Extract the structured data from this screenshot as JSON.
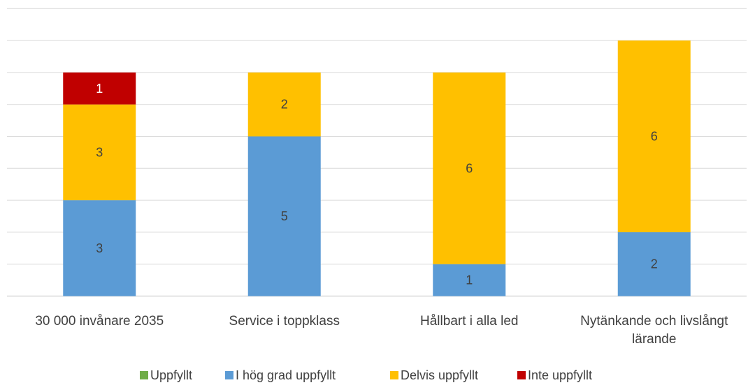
{
  "chart_data": {
    "type": "bar",
    "stacked": true,
    "title": "",
    "xlabel": "",
    "ylabel": "",
    "ylim": [
      0,
      9
    ],
    "grid": true,
    "legend_position": "bottom",
    "categories": [
      [
        "30 000 invånare 2035"
      ],
      [
        "Service i toppklass"
      ],
      [
        "Hållbart i alla led"
      ],
      [
        "Nytänkande och livslångt",
        "lärande"
      ]
    ],
    "series": [
      {
        "name": "Uppfyllt",
        "color": "#70ad47",
        "values": [
          0,
          0,
          0,
          0
        ]
      },
      {
        "name": "I hög grad uppfyllt",
        "color": "#5b9bd5",
        "values": [
          3,
          5,
          1,
          2
        ]
      },
      {
        "name": "Delvis uppfyllt",
        "color": "#ffc000",
        "values": [
          3,
          2,
          6,
          6
        ]
      },
      {
        "name": "Inte uppfyllt",
        "color": "#c00000",
        "values": [
          1,
          0,
          0,
          0
        ]
      }
    ],
    "label_colors": [
      "#404040",
      "#404040",
      "#404040",
      "#ffffff"
    ],
    "gridline_color": "#d9d9d9",
    "axis_color": "#d9d9d9"
  }
}
